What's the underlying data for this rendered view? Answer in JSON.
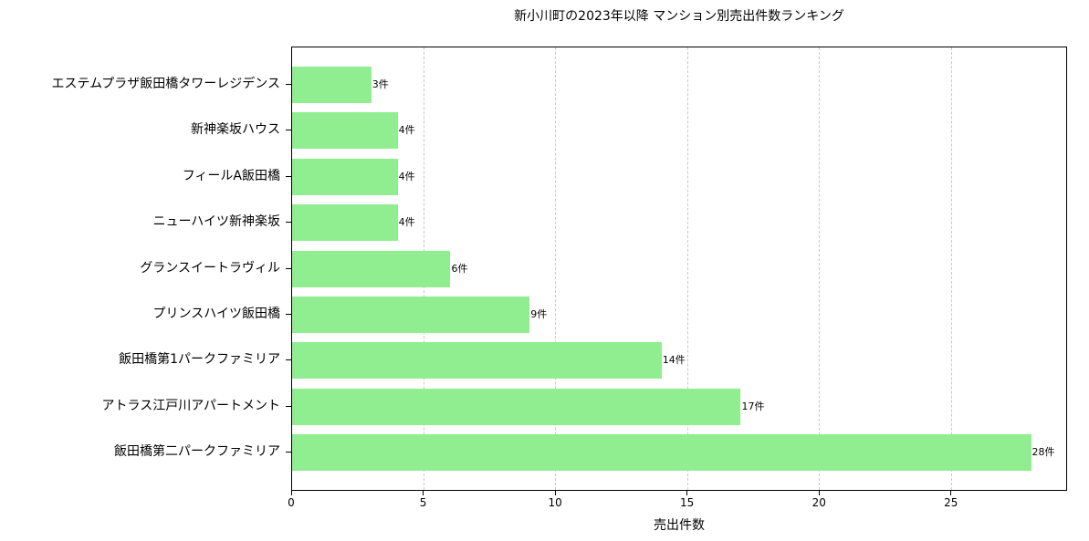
{
  "chart_data": {
    "type": "bar",
    "orientation": "horizontal",
    "title": "新小川町の2023年以降 マンション別売出件数ランキング",
    "xlabel": "売出件数",
    "ylabel": "",
    "xlim": [
      0,
      29.4
    ],
    "xticks": [
      0,
      5,
      10,
      15,
      20,
      25
    ],
    "grid": {
      "axis": "x",
      "style": "dashed",
      "color": "#c8c8c8"
    },
    "legend": null,
    "bar_color": "#90ee90",
    "value_suffix": "件",
    "categories": [
      "エステムプラザ飯田橋タワーレジデンス",
      "新神楽坂ハウス",
      "フィールA飯田橋",
      "ニューハイツ新神楽坂",
      "グランスイートラヴィル",
      "プリンスハイツ飯田橋",
      "飯田橋第1パークファミリア",
      "アトラス江戸川アパートメント",
      "飯田橋第二パークファミリア"
    ],
    "values": [
      3,
      4,
      4,
      4,
      6,
      9,
      14,
      17,
      28
    ],
    "value_labels": [
      "3件",
      "4件",
      "4件",
      "4件",
      "6件",
      "9件",
      "14件",
      "17件",
      "28件"
    ]
  }
}
